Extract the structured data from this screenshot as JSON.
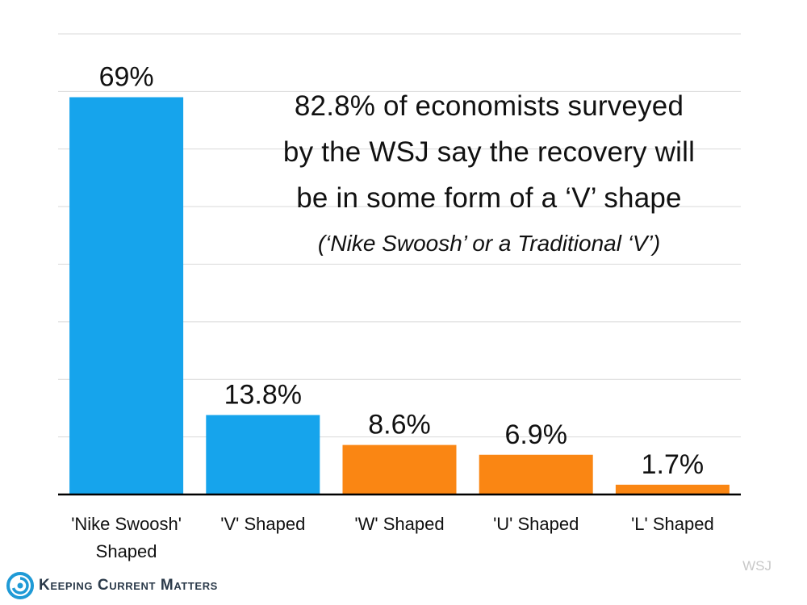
{
  "chart_data": {
    "type": "bar",
    "categories": [
      "'Nike Swoosh' Shaped",
      "'V' Shaped",
      "'W' Shaped",
      "'U' Shaped",
      "'L' Shaped"
    ],
    "values": [
      69,
      13.8,
      8.6,
      6.9,
      1.7
    ],
    "data_labels": [
      "69%",
      "13.8%",
      "8.6%",
      "6.9%",
      "1.7%"
    ],
    "bar_colors": [
      "#16a4ec",
      "#16a4ec",
      "#fa8613",
      "#fa8613",
      "#fa8613"
    ],
    "ylim": [
      0,
      80
    ],
    "grid": true,
    "annotation": {
      "lines": [
        "82.8% of economists surveyed",
        "by the WSJ say the recovery will",
        "be in some form of a ‘V’ shape"
      ],
      "subline": "(‘Nike Swoosh’ or a Traditional ‘V’)"
    }
  },
  "source": "WSJ",
  "brand": {
    "name": "Keeping Current Matters",
    "icon": "swirl-logo-icon",
    "color": "#1f9ad6"
  }
}
